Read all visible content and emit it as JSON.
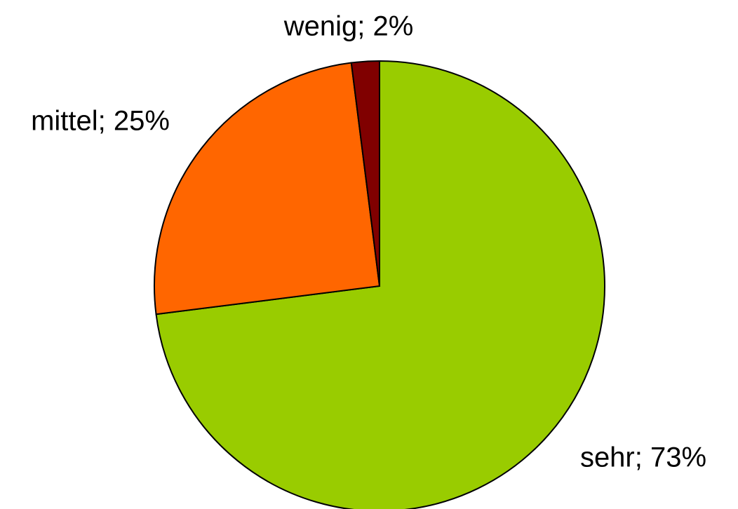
{
  "chart_data": {
    "type": "pie",
    "categories": [
      "sehr",
      "mittel",
      "wenig"
    ],
    "values": [
      73,
      25,
      2
    ],
    "value_labels": [
      "sehr; 73%",
      "mittel; 25%",
      "wenig; 2%"
    ],
    "colors": [
      "#99cc00",
      "#ff6600",
      "#800000"
    ]
  }
}
